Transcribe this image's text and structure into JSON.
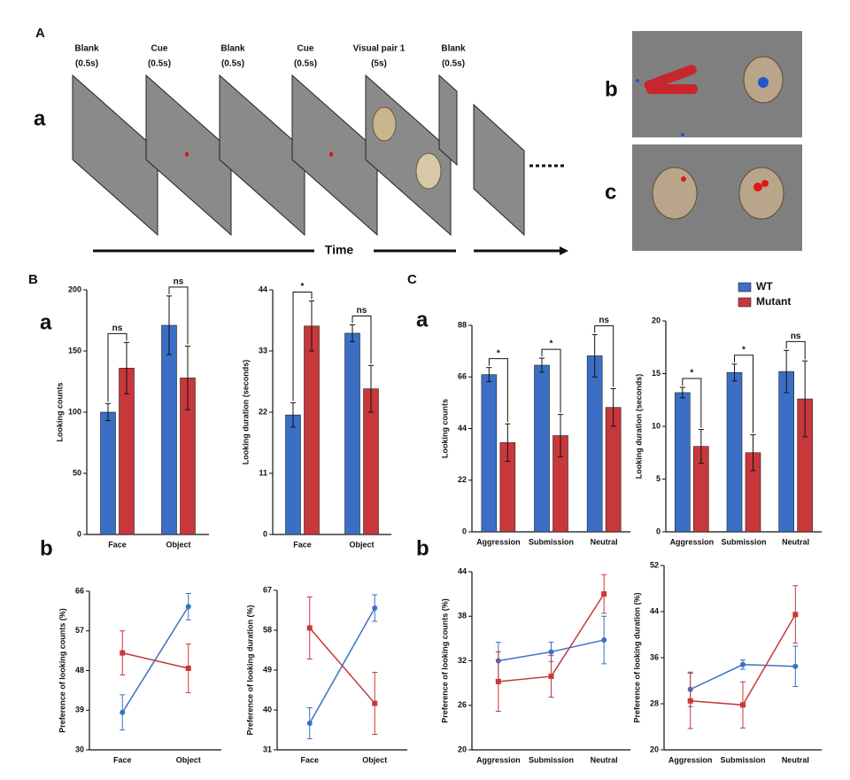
{
  "figure": {
    "panel_A": "A",
    "panel_A_a": "a",
    "panel_A_b": "b",
    "panel_A_c": "c",
    "steps": [
      {
        "name": "Blank",
        "duration": "(0.5s)"
      },
      {
        "name": "Cue",
        "duration": "(0.5s)"
      },
      {
        "name": "Blank",
        "duration": "(0.5s)"
      },
      {
        "name": "Cue",
        "duration": "(0.5s)"
      },
      {
        "name": "Visual pair 1",
        "duration": "(5s)"
      },
      {
        "name": "Blank",
        "duration": "(0.5s)"
      }
    ],
    "time": "Time",
    "panel_B": "B",
    "panel_B_a": "a",
    "panel_B_b": "b",
    "panel_C": "C",
    "panel_C_a": "a",
    "panel_C_b": "b"
  },
  "chart_data": [
    {
      "type": "bar",
      "categories": [
        "Face",
        "Object"
      ],
      "ylabel": "Looking counts",
      "ylim": [
        0,
        200
      ],
      "yticks": [
        0,
        50,
        100,
        150,
        200
      ],
      "series": [
        {
          "name": "WT",
          "color": "#3b6fc6",
          "values": [
            100,
            171
          ],
          "errors": [
            7,
            24
          ]
        },
        {
          "name": "Mutant",
          "color": "#c8383a",
          "values": [
            136,
            128
          ],
          "errors": [
            21,
            26
          ]
        }
      ],
      "annotations": [
        "ns",
        "ns"
      ]
    },
    {
      "type": "bar",
      "categories": [
        "Face",
        "Object"
      ],
      "ylabel": "Looking duration (seconds)",
      "ylim": [
        0,
        44
      ],
      "yticks": [
        0,
        11,
        22,
        33,
        44
      ],
      "series": [
        {
          "name": "WT",
          "color": "#3b6fc6",
          "values": [
            21.5,
            36.2
          ],
          "errors": [
            2.2,
            1.5
          ]
        },
        {
          "name": "Mutant",
          "color": "#c8383a",
          "values": [
            37.5,
            26.2
          ],
          "errors": [
            4.5,
            4.2
          ]
        }
      ],
      "annotations": [
        "*",
        "ns"
      ]
    },
    {
      "type": "line",
      "categories": [
        "Face",
        "Object"
      ],
      "ylabel": "Preference of looking counts (%)",
      "ylim": [
        30,
        66
      ],
      "yticks": [
        30,
        39,
        48,
        57,
        66
      ],
      "series": [
        {
          "name": "WT",
          "color": "#3b6fc6",
          "values": [
            38.5,
            62.5
          ],
          "errors": [
            4,
            3
          ]
        },
        {
          "name": "Mutant",
          "color": "#c8383a",
          "values": [
            52,
            48.5
          ],
          "errors": [
            5,
            5.5
          ]
        }
      ]
    },
    {
      "type": "line",
      "categories": [
        "Face",
        "Object"
      ],
      "ylabel": "Preference of looking duration (%)",
      "ylim": [
        31,
        67
      ],
      "yticks": [
        31,
        40,
        49,
        58,
        67
      ],
      "series": [
        {
          "name": "WT",
          "color": "#3b6fc6",
          "values": [
            37,
            63
          ],
          "errors": [
            3.5,
            3
          ]
        },
        {
          "name": "Mutant",
          "color": "#c8383a",
          "values": [
            58.5,
            41.5
          ],
          "errors": [
            7,
            7
          ]
        }
      ]
    },
    {
      "type": "bar",
      "categories": [
        "Aggression",
        "Submission",
        "Neutral"
      ],
      "ylabel": "Looking counts",
      "ylim": [
        0,
        88
      ],
      "yticks": [
        0,
        22,
        44,
        66,
        88
      ],
      "series": [
        {
          "name": "WT",
          "color": "#3b6fc6",
          "values": [
            67,
            71,
            75
          ],
          "errors": [
            3,
            3,
            9
          ]
        },
        {
          "name": "Mutant",
          "color": "#c8383a",
          "values": [
            38,
            41,
            53
          ],
          "errors": [
            8,
            9,
            8
          ]
        }
      ],
      "annotations": [
        "*",
        "*",
        "ns"
      ]
    },
    {
      "type": "bar",
      "categories": [
        "Aggression",
        "Submission",
        "Neutral"
      ],
      "ylabel": "Looking duration (seconds)",
      "ylim": [
        0,
        20
      ],
      "yticks": [
        0,
        5,
        10,
        15,
        20
      ],
      "series": [
        {
          "name": "WT",
          "color": "#3b6fc6",
          "values": [
            13.2,
            15.1,
            15.2
          ],
          "errors": [
            0.5,
            0.8,
            2
          ]
        },
        {
          "name": "Mutant",
          "color": "#c8383a",
          "values": [
            8.1,
            7.5,
            12.6
          ],
          "errors": [
            1.6,
            1.7,
            3.6
          ]
        }
      ],
      "annotations": [
        "*",
        "*",
        "ns"
      ],
      "legend": "above"
    },
    {
      "type": "line",
      "categories": [
        "Aggression",
        "Submission",
        "Neutral"
      ],
      "ylabel": "Preference of looking counts (%)",
      "ylim": [
        20,
        44
      ],
      "yticks": [
        20,
        26,
        32,
        38,
        44
      ],
      "series": [
        {
          "name": "WT",
          "color": "#3b6fc6",
          "values": [
            32,
            33.2,
            34.8
          ],
          "errors": [
            2.5,
            1.3,
            3.2
          ]
        },
        {
          "name": "Mutant",
          "color": "#c8383a",
          "values": [
            29.2,
            29.9,
            41
          ],
          "errors": [
            4,
            2.8,
            2.6
          ]
        }
      ]
    },
    {
      "type": "line",
      "categories": [
        "Aggression",
        "Submission",
        "Neutral"
      ],
      "ylabel": "Preference of looking duration (%)",
      "ylim": [
        20,
        52
      ],
      "yticks": [
        20,
        28,
        36,
        44,
        52
      ],
      "series": [
        {
          "name": "WT",
          "color": "#3b6fc6",
          "values": [
            30.5,
            34.8,
            34.5
          ],
          "errors": [
            3,
            0.8,
            3.5
          ]
        },
        {
          "name": "Mutant",
          "color": "#c8383a",
          "values": [
            28.5,
            27.8,
            43.5
          ],
          "errors": [
            4.8,
            4,
            5
          ]
        }
      ]
    }
  ]
}
